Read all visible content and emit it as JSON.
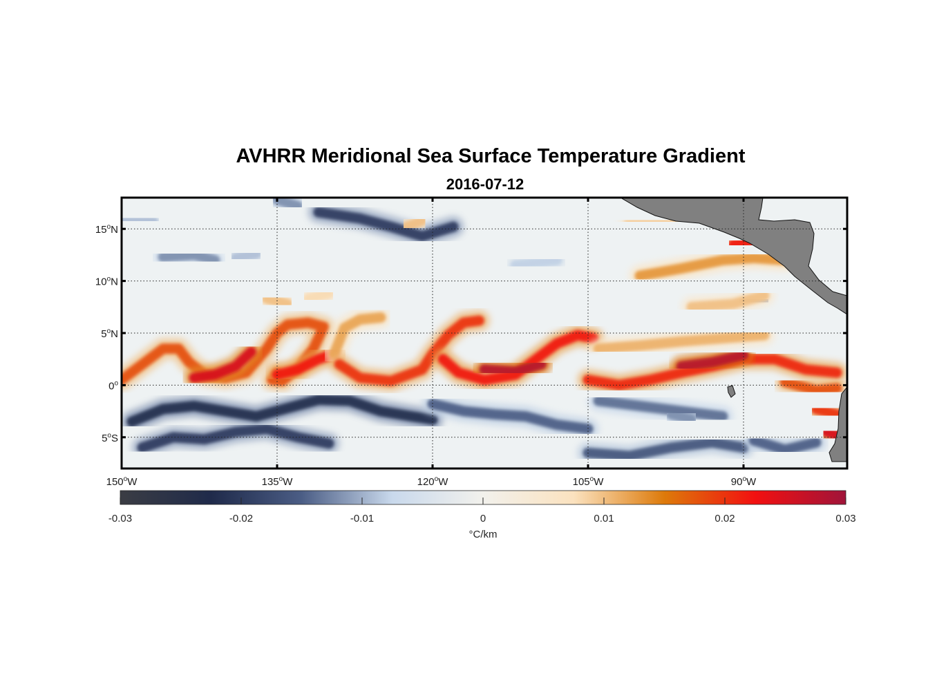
{
  "title": "AVHRR Meridional Sea Surface Temperature Gradient",
  "subtitle": "2016-07-12",
  "map": {
    "lon_range": [
      -150,
      -80
    ],
    "lat_range": [
      -8,
      18
    ],
    "grid": "on, dotted",
    "land_color": "#808080",
    "lat_ticks": [
      {
        "value": 15,
        "num": "15",
        "hemi": "N"
      },
      {
        "value": 10,
        "num": "10",
        "hemi": "N"
      },
      {
        "value": 5,
        "num": "5",
        "hemi": "N"
      },
      {
        "value": 0,
        "num": "0",
        "hemi": ""
      },
      {
        "value": -5,
        "num": "5",
        "hemi": "S"
      }
    ],
    "lon_ticks": [
      {
        "value": -150,
        "num": "150",
        "hemi": "W"
      },
      {
        "value": -135,
        "num": "135",
        "hemi": "W"
      },
      {
        "value": -120,
        "num": "120",
        "hemi": "W"
      },
      {
        "value": -105,
        "num": "105",
        "hemi": "W"
      },
      {
        "value": -90,
        "num": "90",
        "hemi": "W"
      }
    ],
    "degree_symbol": "o",
    "field": {
      "warm_bands": [
        {
          "pts": [
            [
              -150,
              0.5
            ],
            [
              -148,
              2
            ],
            [
              -146,
              3.5
            ],
            [
              -144.5,
              3.5
            ],
            [
              -143.5,
              2.2
            ],
            [
              -142,
              1
            ],
            [
              -140,
              0.7
            ],
            [
              -138,
              1.2
            ],
            [
              -136,
              3.5
            ],
            [
              -135,
              5
            ],
            [
              -134,
              5.8
            ],
            [
              -132,
              6
            ],
            [
              -130.5,
              5.6
            ],
            [
              -131.5,
              3.5
            ],
            [
              -133,
              1.6
            ],
            [
              -134.5,
              0.4
            ],
            [
              -135.5,
              0.5
            ],
            [
              -135,
              1.2
            ]
          ],
          "intensity": 0.018
        },
        {
          "pts": [
            [
              -143,
              0.7
            ],
            [
              -141,
              1
            ],
            [
              -139,
              1.8
            ],
            [
              -137.5,
              3.2
            ]
          ],
          "intensity": 0.025
        },
        {
          "pts": [
            [
              -135,
              1
            ],
            [
              -133,
              1.5
            ],
            [
              -131,
              2.5
            ],
            [
              -129.5,
              3
            ]
          ],
          "intensity": 0.022
        },
        {
          "pts": [
            [
              -129.5,
              3
            ],
            [
              -128.5,
              5.5
            ],
            [
              -127,
              6.3
            ],
            [
              -125,
              6.5
            ]
          ],
          "intensity": 0.012
        },
        {
          "pts": [
            [
              -129,
              2
            ],
            [
              -127,
              0.7
            ],
            [
              -124,
              0.4
            ],
            [
              -121,
              1.5
            ],
            [
              -120,
              3
            ],
            [
              -118.5,
              4.8
            ],
            [
              -117,
              6
            ],
            [
              -115.5,
              6.2
            ]
          ],
          "intensity": 0.02
        },
        {
          "pts": [
            [
              -119,
              2.5
            ],
            [
              -117.5,
              1.2
            ],
            [
              -115,
              0.5
            ],
            [
              -112,
              1
            ],
            [
              -110,
              2.5
            ],
            [
              -108,
              4
            ],
            [
              -106,
              4.8
            ],
            [
              -104.5,
              4.5
            ]
          ],
          "intensity": 0.022
        },
        {
          "pts": [
            [
              -115,
              1.5
            ],
            [
              -112,
              1.3
            ],
            [
              -109.5,
              2
            ]
          ],
          "intensity": 0.028
        },
        {
          "pts": [
            [
              -105,
              0.5
            ],
            [
              -102,
              0
            ],
            [
              -99,
              0.5
            ],
            [
              -96,
              1.2
            ],
            [
              -93,
              1.8
            ],
            [
              -90,
              2.5
            ],
            [
              -87,
              2.5
            ],
            [
              -84,
              1.5
            ],
            [
              -81,
              1.2
            ]
          ],
          "intensity": 0.021
        },
        {
          "pts": [
            [
              -96,
              1.8
            ],
            [
              -93,
              2.2
            ],
            [
              -90,
              2.9
            ]
          ],
          "intensity": 0.028
        },
        {
          "pts": [
            [
              -86,
              0.3
            ],
            [
              -83,
              -0.5
            ],
            [
              -81,
              -0.3
            ]
          ],
          "intensity": 0.018
        },
        {
          "pts": [
            [
              -83,
              -2.3
            ],
            [
              -81,
              -2.8
            ]
          ],
          "intensity": 0.02
        },
        {
          "pts": [
            [
              -82,
              -4.5
            ],
            [
              -80.5,
              -5
            ]
          ],
          "intensity": 0.025
        },
        {
          "pts": [
            [
              -104,
              3.5
            ],
            [
              -100,
              3.8
            ],
            [
              -96,
              4.2
            ],
            [
              -92,
              4.5
            ],
            [
              -88,
              4.8
            ]
          ],
          "intensity": 0.011
        },
        {
          "pts": [
            [
              -95,
              7.5
            ],
            [
              -91,
              7.8
            ],
            [
              -88,
              8.6
            ]
          ],
          "intensity": 0.01
        },
        {
          "pts": [
            [
              -100,
              10.5
            ],
            [
              -96,
              11.2
            ],
            [
              -92,
              12
            ],
            [
              -89,
              12.2
            ],
            [
              -86,
              12
            ]
          ],
          "intensity": 0.013
        },
        {
          "pts": [
            [
              -91,
              13.5
            ],
            [
              -89,
              13.8
            ]
          ],
          "intensity": 0.022
        },
        {
          "pts": [
            [
              -101,
              15.8
            ],
            [
              -96,
              15.7
            ],
            [
              -92,
              15.7
            ]
          ],
          "intensity": 0.009
        },
        {
          "pts": [
            [
              -136,
              8.3
            ],
            [
              -134,
              7.8
            ]
          ],
          "intensity": 0.01
        },
        {
          "pts": [
            [
              -132,
              8.3
            ],
            [
              -130,
              8.8
            ]
          ],
          "intensity": 0.008
        },
        {
          "pts": [
            [
              -122.5,
              15.2
            ],
            [
              -121,
              15.8
            ]
          ],
          "intensity": 0.01
        }
      ],
      "cold_bands": [
        {
          "pts": [
            [
              -149,
              -3.5
            ],
            [
              -146,
              -2.3
            ],
            [
              -143,
              -2
            ],
            [
              -140,
              -2.5
            ],
            [
              -137,
              -3
            ],
            [
              -134,
              -2.2
            ],
            [
              -131,
              -1.4
            ],
            [
              -128,
              -1.5
            ],
            [
              -125,
              -2.5
            ],
            [
              -122,
              -3
            ],
            [
              -120,
              -3.3
            ]
          ],
          "intensity": -0.022
        },
        {
          "pts": [
            [
              -148,
              -6
            ],
            [
              -145,
              -5
            ],
            [
              -142,
              -5.2
            ],
            [
              -139,
              -4.5
            ],
            [
              -136,
              -4.2
            ],
            [
              -133,
              -5
            ],
            [
              -130,
              -5.6
            ]
          ],
          "intensity": -0.02
        },
        {
          "pts": [
            [
              -120,
              -1.8
            ],
            [
              -117,
              -2.5
            ],
            [
              -114,
              -2.8
            ],
            [
              -111,
              -3
            ],
            [
              -108,
              -3.8
            ],
            [
              -105,
              -4.2
            ]
          ],
          "intensity": -0.015
        },
        {
          "pts": [
            [
              -104,
              -1.5
            ],
            [
              -100,
              -2
            ],
            [
              -96,
              -2.5
            ],
            [
              -92,
              -3
            ]
          ],
          "intensity": -0.014
        },
        {
          "pts": [
            [
              -105,
              -6.5
            ],
            [
              -101,
              -6.8
            ],
            [
              -97,
              -6
            ],
            [
              -93,
              -5.5
            ],
            [
              -90,
              -6
            ]
          ],
          "intensity": -0.016
        },
        {
          "pts": [
            [
              -89,
              -5.3
            ],
            [
              -86,
              -6.2
            ],
            [
              -83,
              -5.5
            ]
          ],
          "intensity": -0.015
        },
        {
          "pts": [
            [
              -131,
              16.6
            ],
            [
              -127,
              16
            ],
            [
              -124,
              15.2
            ],
            [
              -121,
              14.3
            ],
            [
              -118,
              15.2
            ]
          ],
          "intensity": -0.02
        },
        {
          "pts": [
            [
              -135,
              17.8
            ],
            [
              -133,
              17.2
            ]
          ],
          "intensity": -0.012
        },
        {
          "pts": [
            [
              -146,
              12.3
            ],
            [
              -143,
              12.5
            ],
            [
              -141,
              12
            ]
          ],
          "intensity": -0.012
        },
        {
          "pts": [
            [
              -150,
              16
            ],
            [
              -147,
              15.8
            ]
          ],
          "intensity": -0.009
        },
        {
          "pts": [
            [
              -139,
              12.2
            ],
            [
              -137,
              12.6
            ]
          ],
          "intensity": -0.009
        },
        {
          "pts": [
            [
              -112,
              11.5
            ],
            [
              -108,
              12
            ]
          ],
          "intensity": -0.008
        },
        {
          "pts": [
            [
              -90,
              8
            ],
            [
              -88,
              8.2
            ]
          ],
          "intensity": -0.013
        },
        {
          "pts": [
            [
              -97,
              -2.8
            ],
            [
              -95,
              -3.3
            ]
          ],
          "intensity": -0.012
        }
      ]
    }
  },
  "colorbar": {
    "min": -0.03,
    "max": 0.03,
    "ticks": [
      {
        "value": -0.03,
        "label": "-0.03"
      },
      {
        "value": -0.02,
        "label": "-0.02"
      },
      {
        "value": -0.01,
        "label": "-0.01"
      },
      {
        "value": 0,
        "label": "0"
      },
      {
        "value": 0.01,
        "label": "0.01"
      },
      {
        "value": 0.02,
        "label": "0.02"
      },
      {
        "value": 0.03,
        "label": "0.03"
      }
    ],
    "unit_label": "°C/km",
    "colors": [
      "#3b3d44",
      "#1f2a4a",
      "#4b5d85",
      "#c9d9ec",
      "#f2f1ec",
      "#fbe2bf",
      "#dd7a0a",
      "#f21010",
      "#a0143a"
    ]
  }
}
